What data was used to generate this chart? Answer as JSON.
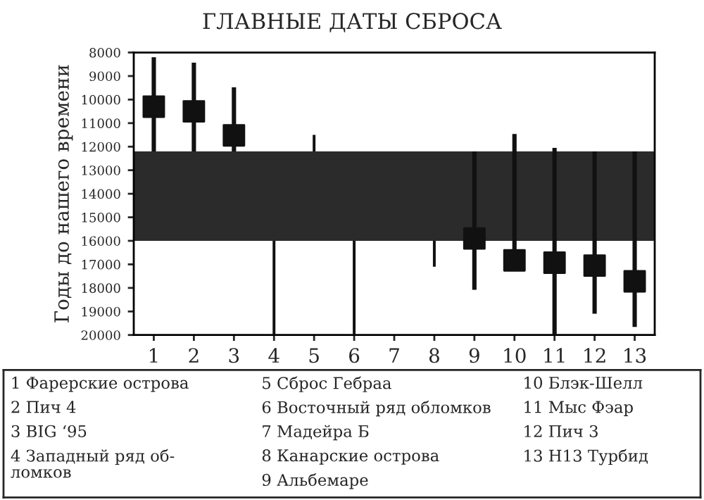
{
  "chart_data": {
    "type": "scatter",
    "title": "ГЛАВНЫЕ ДАТЫ СБРОСА",
    "ylabel": "Годы до нашего времени",
    "categories": [
      "1",
      "2",
      "3",
      "4",
      "5",
      "6",
      "7",
      "8",
      "9",
      "10",
      "11",
      "12",
      "13"
    ],
    "ylim": [
      20000,
      8000
    ],
    "yticks": [
      8000,
      9000,
      10000,
      11000,
      12000,
      13000,
      14000,
      15000,
      16000,
      17000,
      18000,
      19000,
      20000
    ],
    "series": [
      {
        "color": "#111111",
        "marker": "square",
        "values": [
          10300,
          10500,
          11520,
          null,
          null,
          null,
          null,
          null,
          15900,
          16830,
          16930,
          17050,
          17720
        ],
        "errors": [
          [
            8200,
            12200
          ],
          [
            8430,
            12200
          ],
          [
            9480,
            12200
          ],
          null,
          null,
          null,
          null,
          null,
          [
            12200,
            18080
          ],
          [
            11460,
            16830
          ],
          [
            12050,
            20000
          ],
          [
            12200,
            19100
          ],
          [
            12200,
            19660
          ]
        ]
      },
      {
        "type": "bar",
        "color": "#111111",
        "values": [
          null,
          null,
          null,
          4000,
          700,
          4000,
          null,
          1100,
          null,
          null,
          null,
          null,
          null
        ],
        "base": [
          null,
          null,
          null,
          16000,
          11500,
          16000,
          null,
          16000,
          null,
          null,
          null,
          null,
          null
        ]
      }
    ],
    "bands": [
      {
        "axis": "y",
        "from": 12200,
        "to": 16000,
        "color": "#2b2b2b"
      }
    ],
    "grid": false,
    "legend": false,
    "annotations": [
      "1 Фарерские острова",
      "2 Пич 4",
      "3 BIG ‘95",
      "4 Западный ряд об-\nломков",
      "5 Сброс Гебраа",
      "6 Восточный ряд обломков",
      "7 Мадейра Б",
      "8 Канарские острова",
      "9 Альбемаре",
      "10 Блэк-Шелл",
      "11 Мыс Фэар",
      "12 Пич 3",
      "13 H13 Турбид"
    ]
  }
}
